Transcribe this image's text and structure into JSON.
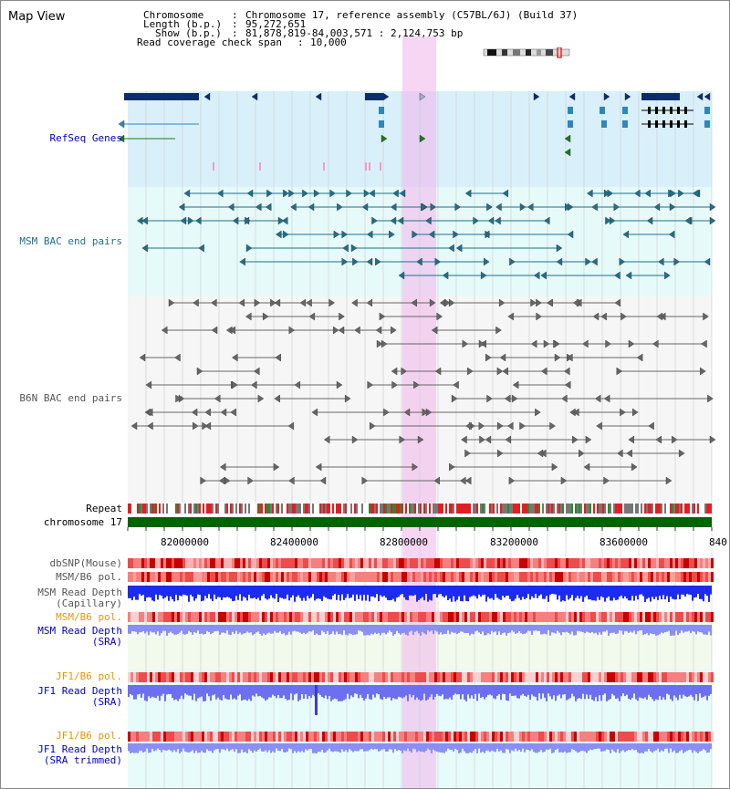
{
  "view_title": "Map View",
  "header": {
    "chromosome_label": "Chromosome",
    "chromosome_value": "Chromosome 17, reference assembly (C57BL/6J) (Build 37)",
    "length_label": "Length (b.p.)",
    "length_value": "95,272,651",
    "show_label": "Show (b.p.)",
    "show_value": "81,878,819-84,003,571 : 2,124,753 bp",
    "coverage_label": "Read coverage check span",
    "coverage_value": "10,000"
  },
  "axis": {
    "ticks": [
      "82000000",
      "82400000",
      "82800000",
      "83200000",
      "83600000",
      "840"
    ]
  },
  "tracks": {
    "refseq": "RefSeq Genes",
    "msm_bac": "MSM BAC end pairs",
    "b6n_bac": "B6N BAC end pairs",
    "repeat": "Repeat",
    "chromosome": "chromosome 17",
    "dbsnp": "dbSNP(Mouse)",
    "msm_b6_pol_1": "MSM/B6 pol.",
    "msm_depth_cap_1": "MSM Read Depth",
    "msm_depth_cap_2": "(Capillary)",
    "msm_b6_pol_2": "MSM/B6 pol.",
    "msm_depth_sra_1": "MSM Read Depth",
    "msm_depth_sra_2": "(SRA)",
    "jf1_b6_pol_1": "JF1/B6 pol.",
    "jf1_depth_sra_1": "JF1 Read Depth",
    "jf1_depth_sra_2": "(SRA)",
    "jf1_b6_pol_2": "JF1/B6 pol.",
    "jf1_depth_trim_1": "JF1 Read Depth",
    "jf1_depth_trim_2": "(SRA trimmed)"
  },
  "colors": {
    "refseq_bg": "#d9f0fb",
    "msm_bg": "#e6fafa",
    "highlight": "#f8d8f4",
    "gene_dark": "#0d2c6b",
    "gene_teal": "#2f86b8",
    "gene_green": "#1a7a1a",
    "msm_line": "#1f6f8b",
    "b6n_line": "#666666",
    "chromosome_bar": "#006400",
    "depth_blue": "#1b2bf0",
    "depth_light": "#8a8ff5",
    "pol_red": "#e34040",
    "label_blue": "#0000c0",
    "label_orange": "#e8940a"
  }
}
